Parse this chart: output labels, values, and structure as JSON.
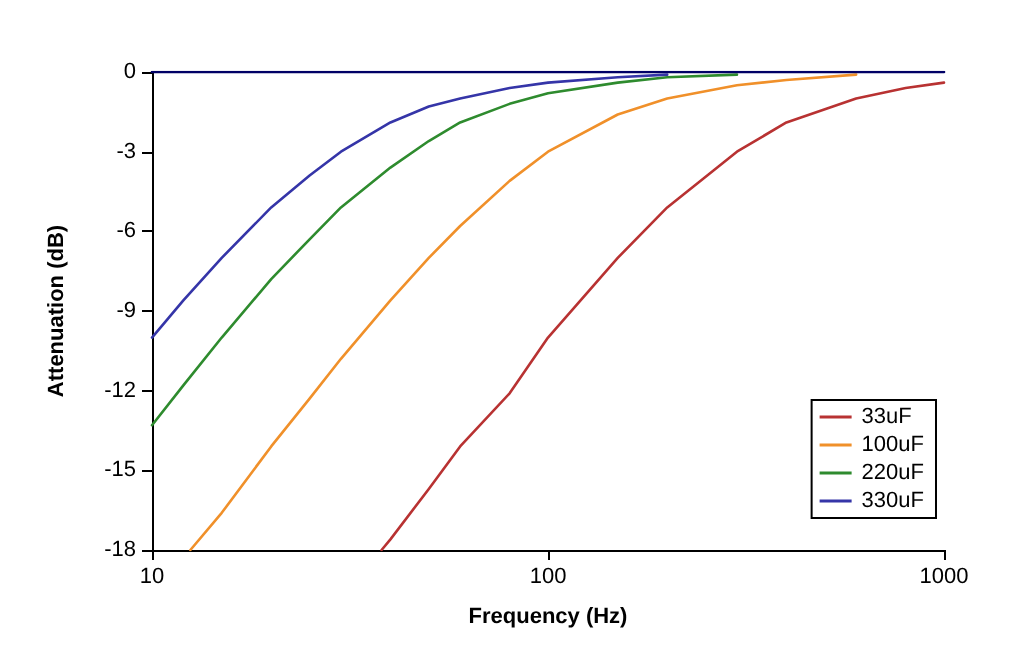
{
  "chart_data": {
    "type": "line",
    "xlabel": "Frequency (Hz)",
    "ylabel": "Attenuation (dB)",
    "log": "x",
    "xlim": [
      10,
      1000
    ],
    "xticks": [
      10,
      100,
      1000
    ],
    "ylim": [
      -18,
      0
    ],
    "yticks": [
      -18,
      -15,
      -12,
      -9,
      -6,
      -3,
      0
    ],
    "grid": false,
    "legend": "bottom right",
    "marker": "none",
    "line_style": "solid",
    "series": [
      {
        "name": "33uF",
        "color": "#b83232",
        "x": [
          38,
          40,
          50,
          60,
          80,
          100,
          150,
          200,
          300,
          400,
          600,
          800,
          1000
        ],
        "values": [
          -18,
          -17.6,
          -15.7,
          -14.1,
          -12.1,
          -10,
          -7,
          -5.1,
          -3,
          -1.9,
          -1,
          -0.6,
          -0.4
        ]
      },
      {
        "name": "100uF",
        "color": "#f0902a",
        "x": [
          12.5,
          15,
          20,
          25,
          30,
          40,
          50,
          60,
          80,
          100,
          150,
          200,
          300,
          400,
          600
        ],
        "values": [
          -18,
          -16.6,
          -14.1,
          -12.3,
          -10.8,
          -8.6,
          -7,
          -5.8,
          -4.1,
          -3,
          -1.6,
          -1,
          -0.5,
          -0.3,
          -0.1
        ]
      },
      {
        "name": "220uF",
        "color": "#2e8b2e",
        "x": [
          10,
          12,
          15,
          20,
          25,
          30,
          40,
          50,
          60,
          80,
          100,
          150,
          200,
          300
        ],
        "values": [
          -13.3,
          -11.8,
          -10,
          -7.8,
          -6.3,
          -5.1,
          -3.6,
          -2.6,
          -1.9,
          -1.2,
          -0.8,
          -0.4,
          -0.2,
          -0.1
        ]
      },
      {
        "name": "330uF",
        "color": "#3535a8",
        "x": [
          10,
          12,
          15,
          20,
          25,
          30,
          40,
          50,
          60,
          80,
          100,
          150,
          200
        ],
        "values": [
          -10,
          -8.6,
          -7,
          -5.1,
          -3.9,
          -3,
          -1.9,
          -1.3,
          -1,
          -0.6,
          -0.4,
          -0.2,
          -0.1
        ]
      },
      {
        "color": "#000066",
        "x": [
          10,
          1000
        ],
        "values": [
          0,
          0
        ]
      }
    ]
  }
}
